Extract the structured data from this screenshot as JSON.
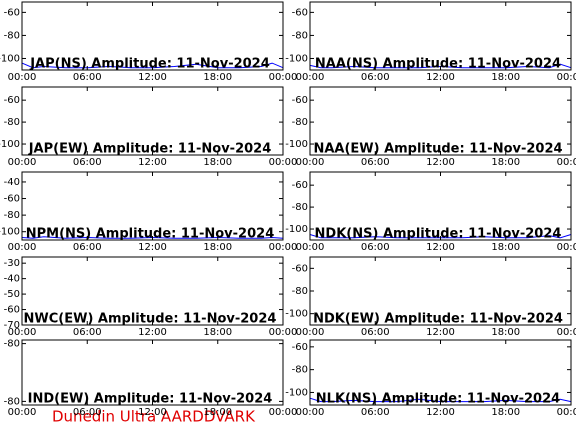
{
  "chart_data": [
    {
      "type": "line",
      "title": "JAP(NS) Amplitude: 11-Nov-2024",
      "xlim": [
        0,
        24
      ],
      "ylim": [
        -110,
        -51
      ],
      "yticks": [
        -60,
        -80,
        -100
      ],
      "xticks": [
        {
          "value": 0,
          "label": "00:00"
        },
        {
          "value": 6,
          "label": "06:00"
        },
        {
          "value": 12,
          "label": "12:00"
        },
        {
          "value": 18,
          "label": "18:00"
        },
        {
          "value": 24,
          "label": "00:00"
        }
      ],
      "x": [
        0,
        1,
        2,
        4,
        6,
        8,
        10,
        12,
        14,
        16,
        18,
        20,
        22,
        23,
        24
      ],
      "series": [
        {
          "color": "#0000ff",
          "values": [
            -104,
            -108,
            -107,
            -108,
            -108,
            -107,
            -108,
            -108,
            -107,
            -105,
            -108,
            -108,
            -107,
            -104,
            -108
          ]
        }
      ]
    },
    {
      "type": "line",
      "title": "NAA(NS) Amplitude: 11-Nov-2024",
      "xlim": [
        0,
        24
      ],
      "ylim": [
        -110,
        -51
      ],
      "yticks": [
        -60,
        -80,
        -100
      ],
      "xticks": [
        {
          "value": 0,
          "label": "00:00"
        },
        {
          "value": 6,
          "label": "06:00"
        },
        {
          "value": 12,
          "label": "12:00"
        },
        {
          "value": 18,
          "label": "18:00"
        },
        {
          "value": 24,
          "label": "00:00"
        }
      ],
      "x": [
        0,
        1,
        2,
        4,
        6,
        8,
        10,
        12,
        14,
        16,
        18,
        20,
        22,
        23,
        24
      ],
      "series": [
        {
          "color": "#0000ff",
          "values": [
            -106,
            -108,
            -108,
            -107,
            -108,
            -108,
            -108,
            -107,
            -108,
            -108,
            -108,
            -107,
            -108,
            -105,
            -108
          ]
        }
      ]
    },
    {
      "type": "line",
      "title": "JAP(EW) Amplitude: 11-Nov-2024",
      "xlim": [
        0,
        24
      ],
      "ylim": [
        -110,
        -48
      ],
      "yticks": [
        -60,
        -80,
        -100
      ],
      "xticks": [
        {
          "value": 0,
          "label": "00:00"
        },
        {
          "value": 6,
          "label": "06:00"
        },
        {
          "value": 12,
          "label": "12:00"
        },
        {
          "value": 18,
          "label": "18:00"
        },
        {
          "value": 24,
          "label": "00:00"
        }
      ]
    },
    {
      "type": "line",
      "title": "NAA(EW) Amplitude: 11-Nov-2024",
      "xlim": [
        0,
        24
      ],
      "ylim": [
        -110,
        -48
      ],
      "yticks": [
        -60,
        -80,
        -100
      ],
      "xticks": [
        {
          "value": 0,
          "label": "00:00"
        },
        {
          "value": 6,
          "label": "06:00"
        },
        {
          "value": 12,
          "label": "12:00"
        },
        {
          "value": 18,
          "label": "18:00"
        },
        {
          "value": 24,
          "label": "00:00"
        }
      ]
    },
    {
      "type": "line",
      "title": "NPM(NS) Amplitude: 11-Nov-2024",
      "xlim": [
        0,
        24
      ],
      "ylim": [
        -110,
        -28
      ],
      "yticks": [
        -40,
        -60,
        -80,
        -100
      ],
      "xticks": [
        {
          "value": 0,
          "label": "00:00"
        },
        {
          "value": 6,
          "label": "06:00"
        },
        {
          "value": 12,
          "label": "12:00"
        },
        {
          "value": 18,
          "label": "18:00"
        },
        {
          "value": 24,
          "label": "00:00"
        }
      ],
      "x": [
        0,
        1,
        2,
        4,
        6,
        8,
        10,
        12,
        14,
        16,
        18,
        20,
        22,
        23,
        24
      ],
      "series": [
        {
          "color": "#0000ff",
          "values": [
            -107,
            -108,
            -106,
            -108,
            -107,
            -108,
            -108,
            -107,
            -108,
            -108,
            -107,
            -108,
            -108,
            -107,
            -108
          ]
        }
      ]
    },
    {
      "type": "line",
      "title": "NDK(NS) Amplitude: 11-Nov-2024",
      "xlim": [
        0,
        24
      ],
      "ylim": [
        -110,
        -48
      ],
      "yticks": [
        -60,
        -80,
        -100
      ],
      "xticks": [
        {
          "value": 0,
          "label": "00:00"
        },
        {
          "value": 6,
          "label": "06:00"
        },
        {
          "value": 12,
          "label": "12:00"
        },
        {
          "value": 18,
          "label": "18:00"
        },
        {
          "value": 24,
          "label": "00:00"
        }
      ],
      "x": [
        0,
        1,
        2,
        4,
        6,
        8,
        10,
        12,
        14,
        16,
        18,
        20,
        22,
        23,
        24
      ],
      "series": [
        {
          "color": "#0000ff",
          "values": [
            -105,
            -108,
            -108,
            -108,
            -107,
            -108,
            -108,
            -108,
            -108,
            -107,
            -108,
            -108,
            -106,
            -108,
            -105
          ]
        }
      ]
    },
    {
      "type": "line",
      "title": "NWC(EW) Amplitude: 11-Nov-2024",
      "xlim": [
        0,
        24
      ],
      "ylim": [
        -70,
        -26
      ],
      "yticks": [
        -30,
        -40,
        -50,
        -60,
        -70
      ],
      "xticks": [
        {
          "value": 0,
          "label": "00:00"
        },
        {
          "value": 6,
          "label": "06:00"
        },
        {
          "value": 12,
          "label": "12:00"
        },
        {
          "value": 18,
          "label": "18:00"
        },
        {
          "value": 24,
          "label": "00:00"
        }
      ]
    },
    {
      "type": "line",
      "title": "NDK(EW) Amplitude: 11-Nov-2024",
      "xlim": [
        0,
        24
      ],
      "ylim": [
        -110,
        -50
      ],
      "yticks": [
        -60,
        -80,
        -100
      ],
      "xticks": [
        {
          "value": 0,
          "label": "00:00"
        },
        {
          "value": 6,
          "label": "06:00"
        },
        {
          "value": 12,
          "label": "12:00"
        },
        {
          "value": 18,
          "label": "18:00"
        },
        {
          "value": 24,
          "label": "00:00"
        }
      ]
    },
    {
      "type": "line",
      "title": "IND(EW) Amplitude: 11-Nov-2024",
      "xlim": [
        0,
        24
      ],
      "ylim": [
        -80.45,
        -79.55
      ],
      "yticks": [
        {
          "value": -79.6,
          "label": "-80"
        },
        {
          "value": -80.4,
          "label": "-80"
        }
      ],
      "xticks": [
        {
          "value": 0,
          "label": "00:00"
        },
        {
          "value": 6,
          "label": "06:00"
        },
        {
          "value": 12,
          "label": "12:00"
        },
        {
          "value": 18,
          "label": "18:00"
        },
        {
          "value": 24,
          "label": "00:00"
        }
      ]
    },
    {
      "type": "line",
      "title": "NLK(NS) Amplitude: 11-Nov-2024",
      "xlim": [
        0,
        24
      ],
      "ylim": [
        -111,
        -54
      ],
      "yticks": [
        -60,
        -80,
        -100
      ],
      "xticks": [
        {
          "value": 0,
          "label": "00:00"
        },
        {
          "value": 6,
          "label": "06:00"
        },
        {
          "value": 12,
          "label": "12:00"
        },
        {
          "value": 18,
          "label": "18:00"
        },
        {
          "value": 24,
          "label": "00:00"
        }
      ],
      "x": [
        0,
        1,
        2,
        4,
        6,
        8,
        10,
        12,
        14,
        16,
        18,
        20,
        22,
        23,
        24
      ],
      "series": [
        {
          "color": "#0000ff",
          "values": [
            -105,
            -108,
            -108,
            -107,
            -108,
            -108,
            -106,
            -108,
            -108,
            -108,
            -107,
            -108,
            -108,
            -106,
            -108
          ]
        }
      ]
    }
  ],
  "footer": "Dunedin Ultra AARDDVARK"
}
